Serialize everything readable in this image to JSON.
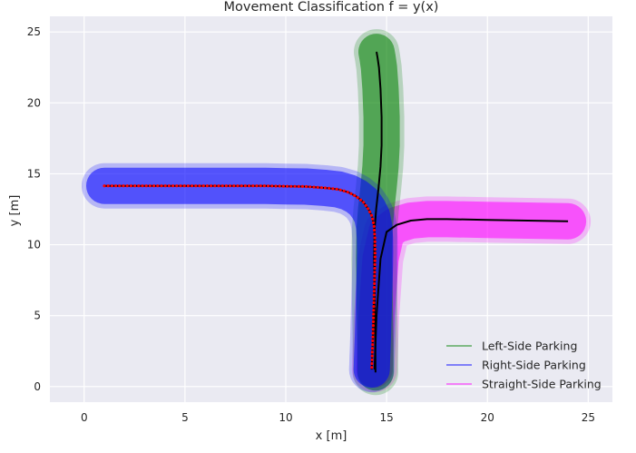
{
  "chart_data": {
    "type": "line",
    "title": "Movement Classification f = y(x)",
    "xlabel": "x [m]",
    "ylabel": "y [m]",
    "xlim": [
      -1.7,
      26.2
    ],
    "ylim": [
      -1.1,
      26.1
    ],
    "xticks": [
      0,
      5,
      10,
      15,
      20,
      25
    ],
    "yticks": [
      0,
      5,
      10,
      15,
      20,
      25
    ],
    "grid": true,
    "legend_position": "bottom-right",
    "colors": {
      "background": "#eaeaf2",
      "grid": "#ffffff",
      "left": "#008000",
      "right": "#0000ff",
      "straight": "#ff00ff",
      "path": "#000000",
      "points": "#ff0000"
    },
    "series": [
      {
        "name": "Left-Side Parking",
        "color": "#008000",
        "x": [
          14.45,
          14.44,
          14.42,
          14.4,
          14.38,
          14.4,
          14.48,
          14.6,
          14.7,
          14.75,
          14.75,
          14.7,
          14.62,
          14.55,
          14.5
        ],
        "y": [
          1.0,
          3.0,
          5.0,
          7.0,
          9.0,
          11.0,
          12.5,
          14.0,
          15.5,
          17.0,
          19.0,
          21.0,
          22.5,
          23.2,
          23.6
        ]
      },
      {
        "name": "Right-Side Parking",
        "color": "#0000ff",
        "x": [
          1.0,
          2.0,
          3.0,
          4.0,
          5.0,
          6.0,
          7.0,
          8.0,
          9.0,
          10.0,
          11.0,
          12.0,
          12.6,
          13.1,
          13.5,
          13.85,
          14.1,
          14.28,
          14.38,
          14.42,
          14.43,
          14.42,
          14.4,
          14.38,
          14.36,
          14.34,
          14.32,
          14.3,
          14.28,
          14.27,
          14.26
        ],
        "y": [
          14.15,
          14.15,
          14.15,
          14.15,
          14.15,
          14.15,
          14.15,
          14.15,
          14.15,
          14.12,
          14.1,
          14.0,
          13.9,
          13.7,
          13.4,
          13.0,
          12.5,
          12.0,
          11.3,
          10.5,
          9.5,
          8.5,
          7.5,
          6.5,
          5.5,
          4.5,
          3.5,
          2.8,
          2.0,
          1.5,
          1.2
        ]
      },
      {
        "name": "Straight-Side Parking",
        "color": "#ff00ff",
        "x": [
          14.4,
          14.5,
          14.7,
          15.0,
          15.5,
          16.2,
          17.0,
          18.0,
          20.0,
          22.0,
          24.0
        ],
        "y": [
          1.2,
          5.0,
          9.0,
          10.9,
          11.4,
          11.7,
          11.8,
          11.8,
          11.75,
          11.7,
          11.65
        ]
      }
    ]
  }
}
